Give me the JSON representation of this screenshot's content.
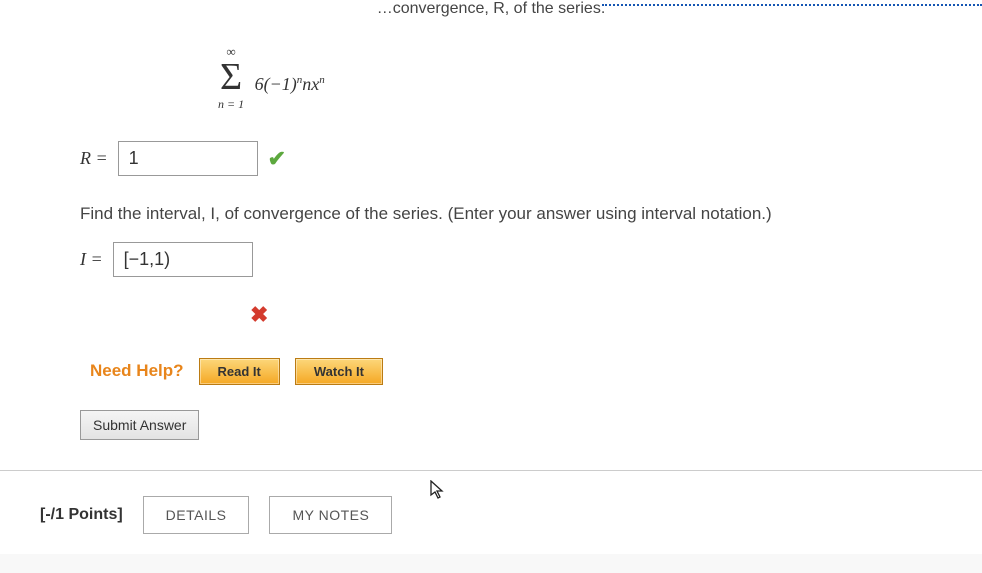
{
  "question1": {
    "intro_fragment": "…convergence, R, of the series.",
    "series": {
      "lower": "n = 1",
      "upper": "∞",
      "expression_html": "6(−1)<sup>n</sup>nx<sup>n</sup>"
    },
    "R": {
      "label": "R =",
      "value": "1",
      "mark": "correct",
      "mark_symbol": "✔"
    },
    "interval_prompt": "Find the interval, I, of convergence of the series. (Enter your answer using interval notation.)",
    "I": {
      "label": "I =",
      "value": "[−1,1)",
      "mark": "wrong",
      "mark_symbol": "✖"
    }
  },
  "help": {
    "label": "Need Help?",
    "read": "Read It",
    "watch": "Watch It"
  },
  "submit": {
    "label": "Submit Answer"
  },
  "next": {
    "points": "[-/1 Points]",
    "details": "DETAILS",
    "notes": "MY NOTES"
  },
  "colors": {
    "accent_orange": "#e8851b",
    "correct": "#5ca83e",
    "wrong": "#d43b2e",
    "btn_gold_top": "#fcd77a",
    "btn_gold_bottom": "#f5a824"
  }
}
